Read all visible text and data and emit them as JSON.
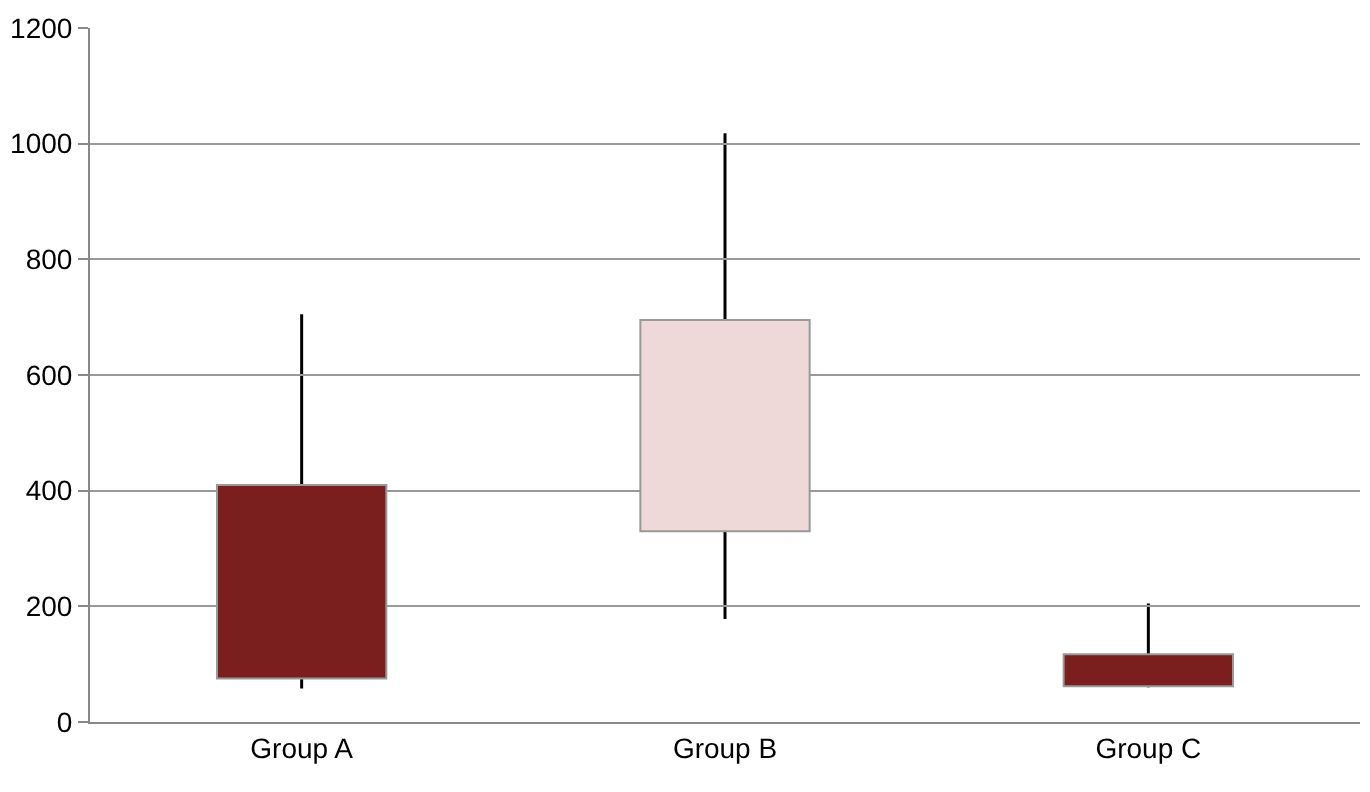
{
  "chart_data": {
    "type": "bar",
    "categories": [
      "Group A",
      "Group B",
      "Group C"
    ],
    "base": [
      75,
      330,
      62
    ],
    "values": [
      335,
      365,
      55
    ],
    "colors": [
      "#7a1e1e",
      "#eed8d8",
      "#7a1e1e"
    ],
    "errors": [
      [
        58,
        705
      ],
      [
        178,
        1018
      ],
      [
        60,
        205
      ]
    ],
    "ylim": [
      0,
      1200
    ],
    "yticks": [
      0,
      200,
      400,
      600,
      800,
      1000,
      1200
    ],
    "grid": "y"
  }
}
